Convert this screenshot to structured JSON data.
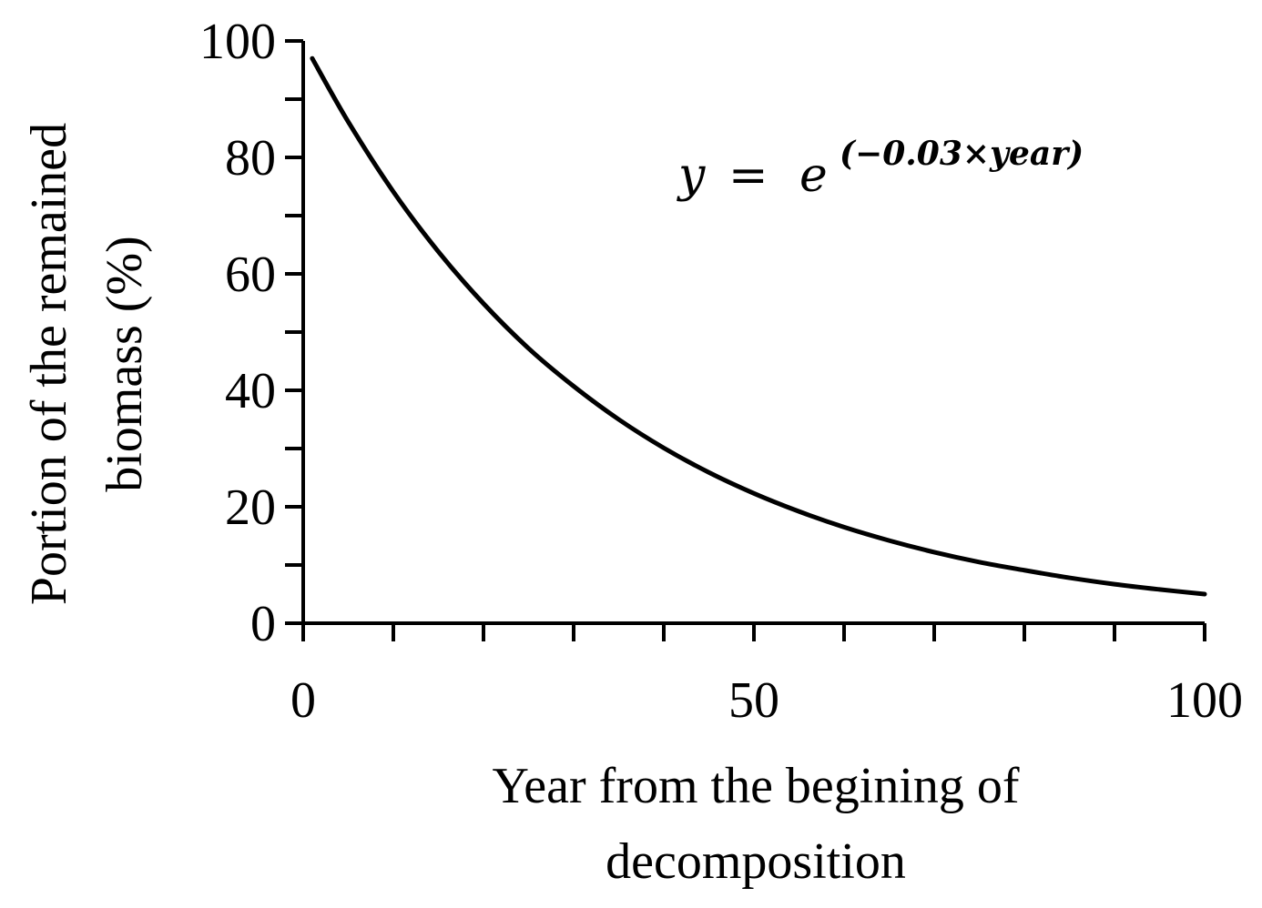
{
  "chart_data": {
    "type": "line",
    "title": "",
    "xlabel": [
      "Year from the begining of",
      "decomposition"
    ],
    "ylabel": [
      "Portion of the remained",
      "biomass (%)"
    ],
    "xlim": [
      0,
      100
    ],
    "ylim": [
      0,
      100
    ],
    "x_ticks": [
      0,
      50,
      100
    ],
    "x_tick_labels": [
      "0",
      "50",
      "100"
    ],
    "x_minor_step": 10,
    "y_ticks": [
      0,
      20,
      40,
      60,
      80,
      100
    ],
    "y_tick_labels": [
      "0",
      "20",
      "40",
      "60",
      "80",
      "100"
    ],
    "y_minor_step": 10,
    "grid": false,
    "legend": "none",
    "annotation": {
      "lhs": "y",
      "equals": "=",
      "base": "e",
      "exponent": "(−0.03×year)"
    },
    "series": [
      {
        "color": "#000000",
        "x": [
          1,
          5,
          10,
          15,
          20,
          25,
          30,
          35,
          40,
          45,
          50,
          55,
          60,
          65,
          70,
          75,
          80,
          85,
          90,
          95,
          100
        ],
        "y": [
          97.0,
          86.1,
          74.1,
          63.8,
          54.9,
          47.2,
          40.7,
          35.0,
          30.1,
          25.9,
          22.3,
          19.2,
          16.5,
          14.2,
          12.2,
          10.5,
          9.1,
          7.8,
          6.7,
          5.8,
          5.0
        ]
      }
    ]
  }
}
